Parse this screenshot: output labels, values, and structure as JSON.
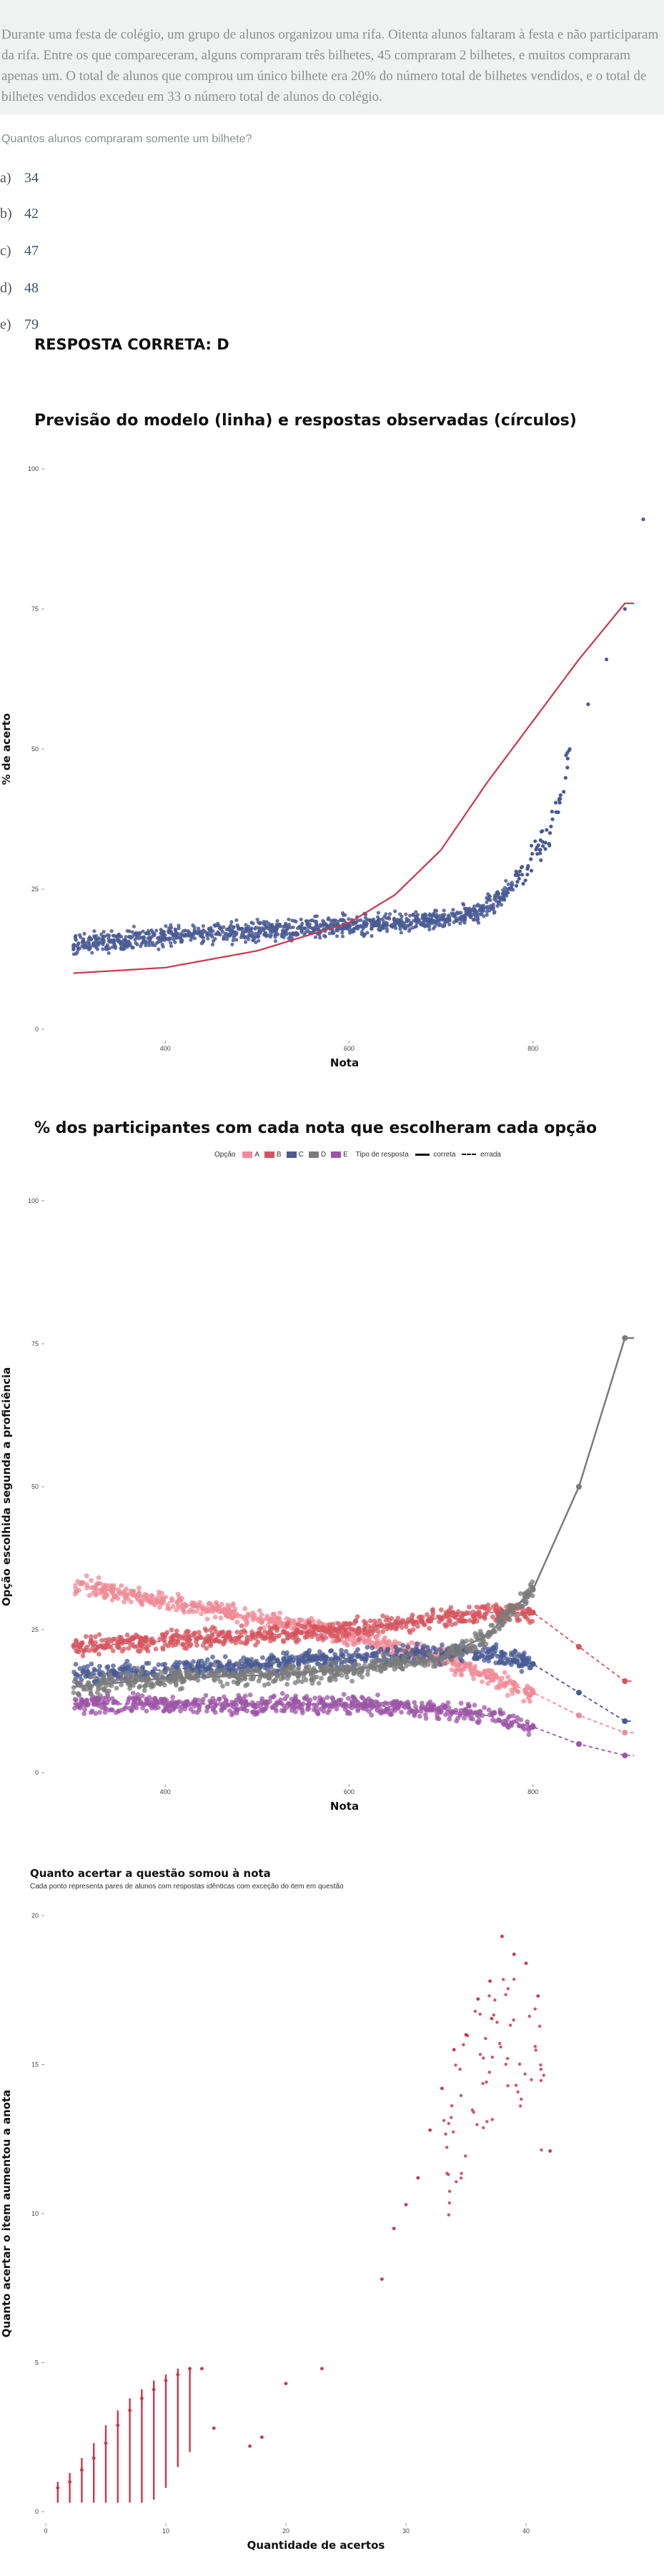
{
  "problem": {
    "text": "Durante uma festa de colégio, um grupo de alunos organizou uma rifa. Oitenta alunos faltaram à festa e não participaram da rifa. Entre os que compareceram, alguns compraram três bilhetes, 45 compraram 2 bilhetes, e muitos compraram apenas um. O total de alunos que comprou um único bilhete era 20% do número total de bilhetes vendidos, e o total de bilhetes vendidos excedeu em 33 o número total de alunos do colégio.",
    "question": "Quantos alunos compraram somente um bilhete?",
    "options": [
      {
        "letter": "a)",
        "value": "34"
      },
      {
        "letter": "b)",
        "value": "42"
      },
      {
        "letter": "c)",
        "value": "47"
      },
      {
        "letter": "d)",
        "value": "48"
      },
      {
        "letter": "e)",
        "value": "79"
      }
    ],
    "answer": "RESPOSTA CORRETA: D"
  },
  "colors": {
    "observed": "#4a5a93",
    "model": "#c8384f",
    "A": "#f08a96",
    "B": "#d4555f",
    "C": "#4a5a93",
    "D": "#7b7b7b",
    "E": "#9c55a6"
  },
  "chart_data": [
    {
      "type": "scatter",
      "title": "Previsão do modelo (linha) e respostas observadas (círculos)",
      "xlabel": "Nota",
      "ylabel": "% de acerto",
      "xlim": [
        270,
        920
      ],
      "ylim": [
        0,
        100
      ],
      "xticks": [
        400,
        600,
        800
      ],
      "yticks": [
        0,
        25,
        50,
        75,
        100
      ],
      "grid": false,
      "model_curve": {
        "x": [
          300,
          400,
          500,
          600,
          650,
          700,
          750,
          800,
          850,
          900
        ],
        "y": [
          10,
          11,
          14,
          19,
          24,
          32,
          44,
          55,
          66,
          76
        ]
      },
      "observed_points": {
        "x": [
          300,
          350,
          400,
          450,
          500,
          550,
          600,
          650,
          700,
          720,
          740,
          760,
          780,
          800,
          820,
          830,
          840,
          860,
          880,
          900,
          920
        ],
        "y": [
          15,
          16,
          16.5,
          17,
          17.5,
          18,
          18.5,
          19,
          19.5,
          20,
          21,
          23,
          26,
          30,
          36,
          42,
          50,
          58,
          66,
          75,
          91
        ]
      }
    },
    {
      "type": "scatter",
      "title": "% dos participantes com cada nota que escolheram cada opção",
      "xlabel": "Nota",
      "ylabel": "Opção escolhida segunda a proficiência",
      "xlim": [
        270,
        920
      ],
      "ylim": [
        0,
        100
      ],
      "xticks": [
        400,
        600,
        800
      ],
      "yticks": [
        0,
        25,
        50,
        75,
        100
      ],
      "legend": {
        "placement": "top",
        "option_title": "Opção",
        "option_labels": [
          "A",
          "B",
          "C",
          "D",
          "E"
        ],
        "type_title": "Tipo de resposta",
        "type_labels": [
          "correta",
          "errada"
        ]
      },
      "series": [
        {
          "name": "A",
          "x": [
            300,
            400,
            500,
            600,
            700,
            750,
            800,
            850,
            900
          ],
          "y": [
            33,
            30,
            27,
            24,
            20,
            17,
            14,
            10,
            7
          ]
        },
        {
          "name": "B",
          "x": [
            300,
            400,
            500,
            600,
            700,
            750,
            800,
            850,
            900
          ],
          "y": [
            22,
            23,
            24,
            25,
            27,
            28,
            28,
            22,
            16
          ]
        },
        {
          "name": "C",
          "x": [
            300,
            400,
            500,
            600,
            700,
            750,
            800,
            850,
            900
          ],
          "y": [
            17,
            18,
            19,
            20,
            21,
            21,
            19,
            14,
            9
          ]
        },
        {
          "name": "D",
          "x": [
            300,
            400,
            500,
            600,
            650,
            700,
            750,
            800,
            850,
            900
          ],
          "y": [
            15,
            16.5,
            17,
            18,
            19,
            20,
            24,
            32,
            50,
            76
          ]
        },
        {
          "name": "E",
          "x": [
            300,
            400,
            500,
            600,
            700,
            750,
            800,
            850,
            900
          ],
          "y": [
            12,
            12,
            12,
            12,
            11,
            10,
            8,
            5,
            3
          ]
        }
      ]
    },
    {
      "type": "scatter",
      "title": "Quanto acertar a questão somou à nota",
      "subtitle": "Cada ponto representa pares de alunos com respostas idênticas com exceção do item em questão",
      "xlabel": "Quantidade de acertos",
      "ylabel": "Quanto acertar o item aumentou a anota",
      "xlim": [
        0,
        45
      ],
      "ylim": [
        0,
        20
      ],
      "xticks": [
        0,
        10,
        20,
        30,
        40
      ],
      "yticks": [
        0,
        5,
        10,
        15,
        20
      ],
      "points": {
        "x": [
          1,
          2,
          3,
          4,
          5,
          6,
          7,
          8,
          9,
          10,
          11,
          12,
          13,
          14,
          17,
          18,
          20,
          23,
          28,
          29,
          30,
          31,
          32,
          33,
          34,
          35,
          36,
          37,
          38,
          39,
          40,
          41,
          42
        ],
        "y": [
          0.8,
          1.0,
          1.4,
          1.8,
          2.3,
          2.9,
          3.4,
          3.8,
          4.1,
          4.4,
          4.6,
          4.8,
          4.8,
          2.8,
          2.2,
          2.5,
          4.3,
          4.8,
          7.8,
          9.5,
          10.3,
          11.2,
          12.8,
          14.2,
          15.5,
          16.0,
          17.2,
          17.8,
          19.3,
          18.7,
          18.4,
          17.3,
          12.1
        ]
      },
      "ranges": [
        {
          "x": 1,
          "y0": 0.3,
          "y1": 1.0
        },
        {
          "x": 2,
          "y0": 0.3,
          "y1": 1.3
        },
        {
          "x": 3,
          "y0": 0.3,
          "y1": 1.8
        },
        {
          "x": 4,
          "y0": 0.3,
          "y1": 2.3
        },
        {
          "x": 5,
          "y0": 0.3,
          "y1": 2.9
        },
        {
          "x": 6,
          "y0": 0.3,
          "y1": 3.4
        },
        {
          "x": 7,
          "y0": 0.3,
          "y1": 3.8
        },
        {
          "x": 8,
          "y0": 0.3,
          "y1": 4.1
        },
        {
          "x": 9,
          "y0": 0.4,
          "y1": 4.4
        },
        {
          "x": 10,
          "y0": 0.8,
          "y1": 4.6
        },
        {
          "x": 11,
          "y0": 1.5,
          "y1": 4.8
        },
        {
          "x": 12,
          "y0": 2.0,
          "y1": 4.8
        }
      ]
    }
  ]
}
